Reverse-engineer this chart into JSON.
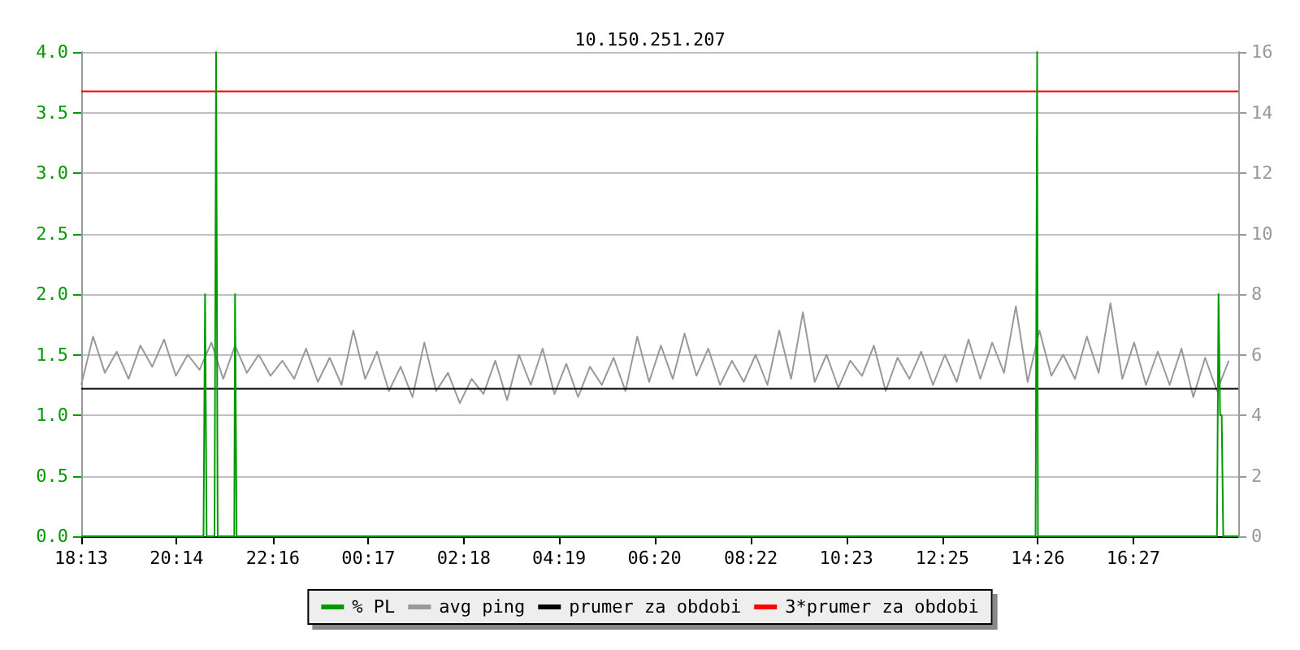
{
  "chart_data": {
    "type": "line",
    "title": "10.150.251.207",
    "legend": "bottom",
    "grid": "y",
    "marker": "none",
    "xlim": [
      "--01-01T18:13",
      "--01-02T18:40"
    ],
    "xticks": [
      {
        "value": "--01-01T18:13",
        "label": "18:13"
      },
      {
        "value": "--01-01T20:14",
        "label": "20:14"
      },
      {
        "value": "--01-01T22:16",
        "label": "22:16"
      },
      {
        "value": "--01-02T00:17",
        "label": "00:17"
      },
      {
        "value": "--01-02T02:18",
        "label": "02:18"
      },
      {
        "value": "--01-02T04:19",
        "label": "04:19"
      },
      {
        "value": "--01-02T06:20",
        "label": "06:20"
      },
      {
        "value": "--01-02T08:22",
        "label": "08:22"
      },
      {
        "value": "--01-02T10:23",
        "label": "10:23"
      },
      {
        "value": "--01-02T12:25",
        "label": "12:25"
      },
      {
        "value": "--01-02T14:26",
        "label": "14:26"
      },
      {
        "value": "--01-02T16:27",
        "label": "16:27"
      }
    ],
    "ylim": [
      0,
      4
    ],
    "yticks": [
      {
        "value": 0,
        "label": "0.0"
      },
      {
        "value": 0.5,
        "label": "0.5"
      },
      {
        "value": 1,
        "label": "1.0"
      },
      {
        "value": 1.5,
        "label": "1.5"
      },
      {
        "value": 2,
        "label": "2.0"
      },
      {
        "value": 2.5,
        "label": "2.5"
      },
      {
        "value": 3,
        "label": "3.0"
      },
      {
        "value": 3.5,
        "label": "3.5"
      },
      {
        "value": 4,
        "label": "4.0"
      }
    ],
    "y2lim": [
      0,
      16
    ],
    "y2ticks": [
      0,
      2,
      4,
      6,
      8,
      10,
      12,
      14,
      16
    ],
    "series": [
      {
        "name": "% PL",
        "color": "#009900",
        "x": [
          "--01-01T18:13",
          "--01-01T20:48",
          "--01-01T20:50",
          "--01-01T20:52",
          "--01-01T21:02",
          "--01-01T21:04",
          "--01-01T21:06",
          "--01-01T21:27",
          "--01-01T21:28",
          "--01-01T21:30",
          "--01-02T14:23",
          "--01-02T14:25",
          "--01-02T14:26",
          "--01-02T18:13",
          "--01-02T18:15",
          "--01-02T18:17",
          "--01-02T18:19",
          "--01-02T18:21",
          "--01-02T18:40"
        ],
        "values": [
          0,
          0,
          2,
          0,
          0,
          4,
          0,
          0,
          2,
          0,
          0,
          4,
          0,
          0,
          2,
          1,
          1,
          0,
          0
        ]
      },
      {
        "name": "avg ping",
        "color": "#999999",
        "axis": "y2",
        "x": [
          "--01-01T18:13",
          "--01-01T18:28",
          "--01-01T18:43",
          "--01-01T18:58",
          "--01-01T19:13",
          "--01-01T19:28",
          "--01-01T19:43",
          "--01-01T19:58",
          "--01-01T20:13",
          "--01-01T20:28",
          "--01-01T20:43",
          "--01-01T20:58",
          "--01-01T21:13",
          "--01-01T21:28",
          "--01-01T21:43",
          "--01-01T21:58",
          "--01-01T22:13",
          "--01-01T22:28",
          "--01-01T22:43",
          "--01-01T22:58",
          "--01-01T23:13",
          "--01-01T23:28",
          "--01-01T23:43",
          "--01-01T23:58",
          "--01-02T00:13",
          "--01-02T00:28",
          "--01-02T00:43",
          "--01-02T00:58",
          "--01-02T01:13",
          "--01-02T01:28",
          "--01-02T01:43",
          "--01-02T01:58",
          "--01-02T02:13",
          "--01-02T02:28",
          "--01-02T02:43",
          "--01-02T02:58",
          "--01-02T03:13",
          "--01-02T03:28",
          "--01-02T03:43",
          "--01-02T03:58",
          "--01-02T04:13",
          "--01-02T04:28",
          "--01-02T04:43",
          "--01-02T04:58",
          "--01-02T05:13",
          "--01-02T05:28",
          "--01-02T05:43",
          "--01-02T05:58",
          "--01-02T06:13",
          "--01-02T06:28",
          "--01-02T06:43",
          "--01-02T06:58",
          "--01-02T07:13",
          "--01-02T07:28",
          "--01-02T07:43",
          "--01-02T07:58",
          "--01-02T08:13",
          "--01-02T08:28",
          "--01-02T08:43",
          "--01-02T08:58",
          "--01-02T09:13",
          "--01-02T09:28",
          "--01-02T09:43",
          "--01-02T09:58",
          "--01-02T10:13",
          "--01-02T10:28",
          "--01-02T10:43",
          "--01-02T10:58",
          "--01-02T11:13",
          "--01-02T11:28",
          "--01-02T11:43",
          "--01-02T11:58",
          "--01-02T12:13",
          "--01-02T12:28",
          "--01-02T12:43",
          "--01-02T12:58",
          "--01-02T13:13",
          "--01-02T13:28",
          "--01-02T13:43",
          "--01-02T13:58",
          "--01-02T14:13",
          "--01-02T14:28",
          "--01-02T14:43",
          "--01-02T14:58",
          "--01-02T15:13",
          "--01-02T15:28",
          "--01-02T15:43",
          "--01-02T15:58",
          "--01-02T16:13",
          "--01-02T16:28",
          "--01-02T16:43",
          "--01-02T16:58",
          "--01-02T17:13",
          "--01-02T17:28",
          "--01-02T17:43",
          "--01-02T17:58",
          "--01-02T18:13",
          "--01-02T18:28"
        ],
        "values": [
          5.0,
          6.6,
          5.4,
          6.1,
          5.2,
          6.3,
          5.6,
          6.5,
          5.3,
          6.0,
          5.5,
          6.4,
          5.2,
          6.3,
          5.4,
          6.0,
          5.3,
          5.8,
          5.2,
          6.2,
          5.1,
          5.9,
          5.0,
          6.8,
          5.2,
          6.1,
          4.8,
          5.6,
          4.6,
          6.4,
          4.8,
          5.4,
          4.4,
          5.2,
          4.7,
          5.8,
          4.5,
          6.0,
          5.0,
          6.2,
          4.7,
          5.7,
          4.6,
          5.6,
          5.0,
          5.9,
          4.8,
          6.6,
          5.1,
          6.3,
          5.2,
          6.7,
          5.3,
          6.2,
          5.0,
          5.8,
          5.1,
          6.0,
          5.0,
          6.8,
          5.2,
          7.4,
          5.1,
          6.0,
          4.9,
          5.8,
          5.3,
          6.3,
          4.8,
          5.9,
          5.2,
          6.1,
          5.0,
          6.0,
          5.1,
          6.5,
          5.2,
          6.4,
          5.4,
          7.6,
          5.1,
          6.8,
          5.3,
          6.0,
          5.2,
          6.6,
          5.4,
          7.7,
          5.2,
          6.4,
          5.0,
          6.1,
          5.0,
          6.2,
          4.6,
          5.9,
          4.8,
          5.8
        ]
      },
      {
        "name": "prumer za obdobi",
        "color": "#000000",
        "axis": "y2",
        "x": [
          "--01-01T18:13",
          "--01-02T18:40"
        ],
        "values": [
          4.87,
          4.87
        ]
      },
      {
        "name": "3*prumer za obdobi",
        "color": "#ff0000",
        "axis": "y2",
        "x": [
          "--01-01T18:13",
          "--01-02T18:40"
        ],
        "values": [
          14.7,
          14.7
        ]
      }
    ]
  }
}
